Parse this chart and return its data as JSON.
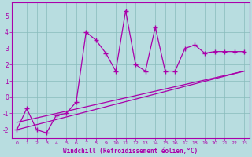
{
  "xlabel": "Windchill (Refroidissement éolien,°C)",
  "bg_color": "#b8dde0",
  "line_color": "#aa00aa",
  "grid_color": "#88bbbb",
  "x_data": [
    0,
    1,
    2,
    3,
    4,
    5,
    6,
    7,
    8,
    9,
    10,
    11,
    12,
    13,
    14,
    15,
    16,
    17,
    18,
    19,
    20,
    21,
    22,
    23
  ],
  "y_data": [
    -2.0,
    -0.7,
    -2.0,
    -2.2,
    -1.1,
    -1.0,
    -0.3,
    4.0,
    3.5,
    2.7,
    1.6,
    5.3,
    2.0,
    1.6,
    4.3,
    1.6,
    1.6,
    3.0,
    3.2,
    2.7,
    2.8,
    2.8,
    2.8,
    2.8
  ],
  "line1_x": [
    0,
    23
  ],
  "line1_y": [
    -2.0,
    1.6
  ],
  "line2_x": [
    0,
    23
  ],
  "line2_y": [
    -1.55,
    1.6
  ],
  "ylim": [
    -2.5,
    5.8
  ],
  "xlim": [
    -0.5,
    23.5
  ],
  "yticks": [
    -2,
    -1,
    0,
    1,
    2,
    3,
    4,
    5
  ],
  "xticks": [
    0,
    1,
    2,
    3,
    4,
    5,
    6,
    7,
    8,
    9,
    10,
    11,
    12,
    13,
    14,
    15,
    16,
    17,
    18,
    19,
    20,
    21,
    22,
    23
  ]
}
